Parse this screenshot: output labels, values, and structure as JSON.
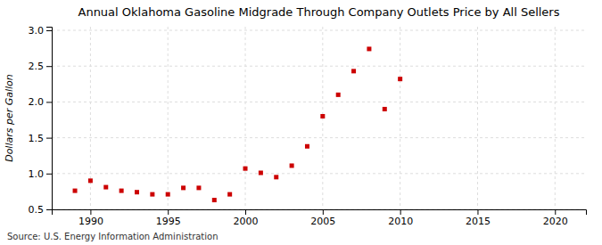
{
  "chart_data": {
    "type": "scatter",
    "title": "Annual Oklahoma Gasoline Midgrade Through Company Outlets Price by All Sellers",
    "y_label": "Dollars per Gallon",
    "annotations": [
      "Source: U.S. Energy Information Administration"
    ],
    "x": [
      1989,
      1990,
      1991,
      1992,
      1993,
      1994,
      1995,
      1996,
      1997,
      1998,
      1999,
      2000,
      2001,
      2002,
      2003,
      2004,
      2005,
      2006,
      2007,
      2008,
      2009,
      2010
    ],
    "values": [
      0.76,
      0.9,
      0.81,
      0.76,
      0.74,
      0.71,
      0.71,
      0.8,
      0.8,
      0.63,
      0.71,
      1.07,
      1.01,
      0.95,
      1.11,
      1.38,
      1.8,
      2.1,
      2.43,
      2.74,
      1.9,
      2.32
    ],
    "color": "#cc0000",
    "marker": "square",
    "xlim": [
      1987.5,
      2022
    ],
    "ylim": [
      0.5,
      3.05
    ],
    "xticks": [
      1990,
      1995,
      2000,
      2005,
      2010,
      2015,
      2020
    ],
    "yticks": [
      0.5,
      {
        "value": 1.0,
        "label": "1.0"
      },
      1.5,
      {
        "value": 2.0,
        "label": "2.0"
      },
      2.5,
      {
        "value": 3.0,
        "label": "3.0"
      }
    ],
    "grid": true
  }
}
